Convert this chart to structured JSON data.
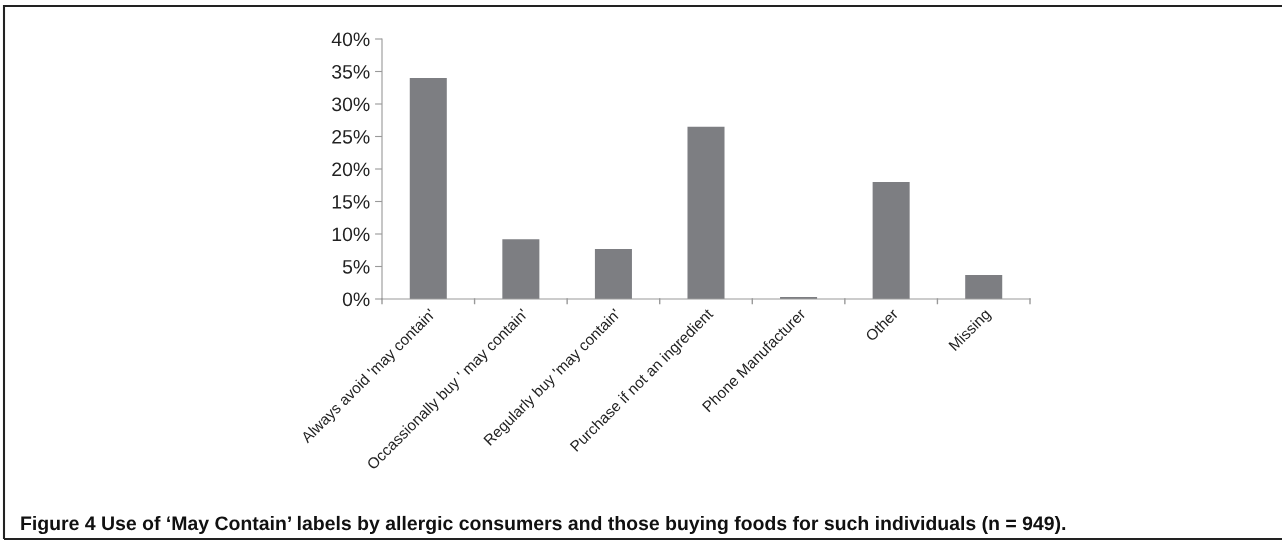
{
  "chart_data": {
    "type": "bar",
    "categories": [
      "Always avoid 'may contain'",
      "Occassionally buy ' may contain'",
      "Regularly buy 'may contain'",
      "Purchase if not an ingredient",
      "Phone Manufacturer",
      "Other",
      "Missing"
    ],
    "values": [
      34,
      9.2,
      7.7,
      26.5,
      0.3,
      18,
      3.7
    ],
    "color": "#7d7e82",
    "ylim": [
      0,
      40
    ],
    "yticks": [
      {
        "value": 0,
        "label": "0%"
      },
      {
        "value": 5,
        "label": "5%"
      },
      {
        "value": 10,
        "label": "10%"
      },
      {
        "value": 15,
        "label": "15%"
      },
      {
        "value": 20,
        "label": "20%"
      },
      {
        "value": 25,
        "label": "25%"
      },
      {
        "value": 30,
        "label": "30%"
      },
      {
        "value": 35,
        "label": "35%"
      },
      {
        "value": 40,
        "label": "40%"
      }
    ],
    "grid": false,
    "legend": false,
    "annotations": [
      "Figure 4 Use of ‘May Contain’ labels by allergic consumers and those buying foods for such individuals (n = 949)."
    ]
  }
}
